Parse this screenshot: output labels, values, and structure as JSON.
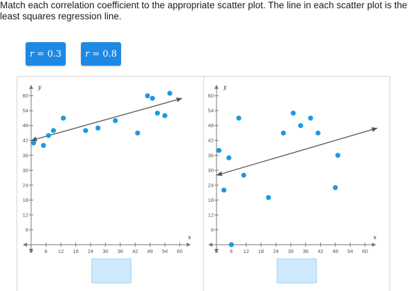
{
  "instructions": "Match each correlation coefficient to the appropriate scatter plot. The line in each scatter plot is the least squares regression line.",
  "tiles": [
    {
      "var": "r",
      "eq": " = ",
      "val": "0.3"
    },
    {
      "var": "r",
      "eq": " = ",
      "val": "0.8"
    }
  ],
  "colors": {
    "tile": "#1e88e5",
    "point": "#1a9ae0",
    "line": "#555555",
    "dropzone": "#cde9fb"
  },
  "chart_data": [
    {
      "type": "scatter",
      "xlabel": "x",
      "ylabel": "y",
      "xlim": [
        0,
        60
      ],
      "ylim": [
        0,
        60
      ],
      "xticks": [
        0,
        6,
        12,
        18,
        24,
        30,
        36,
        42,
        48,
        54,
        60
      ],
      "yticks": [
        6,
        12,
        18,
        24,
        30,
        36,
        42,
        48,
        54,
        60
      ],
      "points": [
        {
          "x": 1,
          "y": 41
        },
        {
          "x": 5,
          "y": 40
        },
        {
          "x": 7,
          "y": 44
        },
        {
          "x": 9,
          "y": 46
        },
        {
          "x": 13,
          "y": 51
        },
        {
          "x": 22,
          "y": 46
        },
        {
          "x": 27,
          "y": 47
        },
        {
          "x": 34,
          "y": 50
        },
        {
          "x": 43,
          "y": 45
        },
        {
          "x": 47,
          "y": 60
        },
        {
          "x": 49,
          "y": 59
        },
        {
          "x": 51,
          "y": 53
        },
        {
          "x": 54,
          "y": 52
        },
        {
          "x": 56,
          "y": 61
        }
      ],
      "regression": {
        "from": [
          0,
          42
        ],
        "to": [
          61,
          59
        ]
      }
    },
    {
      "type": "scatter",
      "xlabel": "x",
      "ylabel": "y",
      "xlim": [
        0,
        60
      ],
      "ylim": [
        0,
        60
      ],
      "xticks": [
        0,
        6,
        12,
        18,
        24,
        30,
        36,
        42,
        48,
        54,
        60
      ],
      "yticks": [
        6,
        12,
        18,
        24,
        30,
        36,
        42,
        48,
        54,
        60
      ],
      "points": [
        {
          "x": 1,
          "y": 38
        },
        {
          "x": 3,
          "y": 22
        },
        {
          "x": 5,
          "y": 35
        },
        {
          "x": 6,
          "y": 0
        },
        {
          "x": 9,
          "y": 51
        },
        {
          "x": 11,
          "y": 28
        },
        {
          "x": 21,
          "y": 19
        },
        {
          "x": 27,
          "y": 45
        },
        {
          "x": 31,
          "y": 53
        },
        {
          "x": 34,
          "y": 48
        },
        {
          "x": 38,
          "y": 51
        },
        {
          "x": 41,
          "y": 45
        },
        {
          "x": 48,
          "y": 23
        },
        {
          "x": 49,
          "y": 36
        }
      ],
      "regression": {
        "from": [
          0,
          28
        ],
        "to": [
          65,
          47
        ]
      }
    }
  ]
}
